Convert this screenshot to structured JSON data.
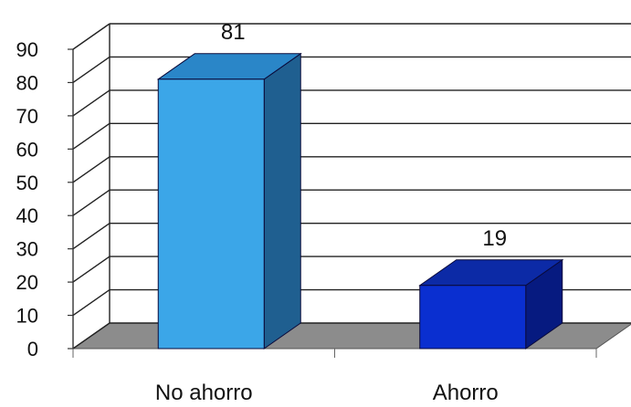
{
  "chart_data": {
    "type": "bar",
    "categories": [
      "No ahorro",
      "Ahorro"
    ],
    "values": [
      81,
      19
    ],
    "data_labels": [
      "81",
      "19"
    ],
    "yticks": [
      "0",
      "10",
      "20",
      "30",
      "40",
      "50",
      "60",
      "70",
      "80",
      "90"
    ],
    "ylim": [
      0,
      90
    ],
    "grid": true,
    "three_d": true,
    "title": "",
    "xlabel": "",
    "ylabel": ""
  },
  "colors": {
    "bar_front": [
      "#3BA6E8",
      "#0A2FD0"
    ],
    "bar_top": [
      "#2A86C8",
      "#0C2AA6"
    ],
    "bar_side": [
      "#1F5F90",
      "#061A80"
    ],
    "floor": "#8C8C8C",
    "grid": "#222222"
  }
}
